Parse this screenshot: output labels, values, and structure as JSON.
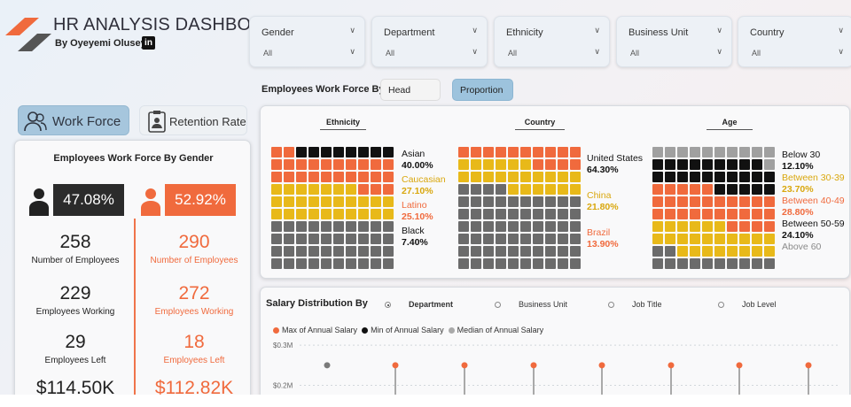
{
  "header": {
    "title": "HR ANALYSIS DASHBOARD",
    "byline": "By Oyeyemi Oluseye",
    "linkedin_icon": "in"
  },
  "filters": [
    {
      "label": "Gender",
      "value": "All"
    },
    {
      "label": "Department",
      "value": "All"
    },
    {
      "label": "Ethnicity",
      "value": "All"
    },
    {
      "label": "Business Unit",
      "value": "All"
    },
    {
      "label": "Country",
      "value": "All"
    }
  ],
  "nav": {
    "workforce": "Work Force",
    "retention": "Retention Rate",
    "active": "workforce"
  },
  "workforce_by": {
    "label": "Employees Work Force By",
    "head_count": "Head Count",
    "proportion": "Proportion",
    "active": "proportion"
  },
  "gender_card": {
    "title": "Employees Work Force By Gender",
    "male": {
      "pct": "47.08%",
      "employees": "258",
      "employees_label": "Number of Employees",
      "working": "229",
      "working_label": "Employees Working",
      "left": "29",
      "left_label": "Employees Left",
      "salary": "$114.50K"
    },
    "female": {
      "pct": "52.92%",
      "employees": "290",
      "employees_label": "Number of Employees",
      "working": "272",
      "working_label": "Employees Working",
      "left": "18",
      "left_label": "Employees Left",
      "salary": "$112.82K"
    }
  },
  "waffles": {
    "ethnicity": {
      "title": "Ethnicity",
      "items": [
        {
          "label": "Asian",
          "value": "40.00%",
          "pct": 40.0,
          "color": "#6b6b6b"
        },
        {
          "label": "Caucasian",
          "value": "27.10%",
          "pct": 27.1,
          "color": "#e8b919"
        },
        {
          "label": "Latino",
          "value": "25.10%",
          "pct": 25.1,
          "color": "#f06a3d"
        },
        {
          "label": "Black",
          "value": "7.40%",
          "pct": 7.4,
          "color": "#111111"
        }
      ]
    },
    "country": {
      "title": "Country",
      "items": [
        {
          "label": "United States",
          "value": "64.30%",
          "pct": 64.3,
          "color": "#6b6b6b"
        },
        {
          "label": "China",
          "value": "21.80%",
          "pct": 21.8,
          "color": "#e8b919"
        },
        {
          "label": "Brazil",
          "value": "13.90%",
          "pct": 13.9,
          "color": "#f06a3d"
        }
      ]
    },
    "age": {
      "title": "Age",
      "items": [
        {
          "label": "Below 30",
          "value": "12.10%",
          "pct": 12.1,
          "color": "#6b6b6b"
        },
        {
          "label": "Between 30-39",
          "value": "23.70%",
          "pct": 23.7,
          "color": "#e8b919"
        },
        {
          "label": "Between 40-49",
          "value": "28.80%",
          "pct": 28.8,
          "color": "#f06a3d"
        },
        {
          "label": "Between 50-59",
          "value": "24.10%",
          "pct": 24.1,
          "color": "#111111"
        },
        {
          "label": "Above 60",
          "value": "",
          "pct": 11.3,
          "color": "#a0a0a0"
        }
      ]
    }
  },
  "salary": {
    "title": "Salary Distribution By",
    "options": [
      "Department",
      "Business Unit",
      "Job Title",
      "Job Level"
    ],
    "selected": "Department",
    "legend": [
      {
        "label": "Max of Annual Salary",
        "color": "#f06a3d"
      },
      {
        "label": "Min of Annual Salary",
        "color": "#111111"
      },
      {
        "label": "Median of Annual Salary",
        "color": "#a9a9a9"
      }
    ]
  },
  "chart_data": {
    "type": "scatter",
    "title": "Salary Distribution By",
    "yticks": [
      "$0.3M",
      "$0.2M"
    ],
    "ylim": [
      0.1,
      0.32
    ],
    "series": [
      {
        "name": "Max of Annual Salary",
        "color": "#f06a3d",
        "values": [
          null,
          0.25,
          0.25,
          0.25,
          0.25,
          0.25,
          0.25,
          0.25
        ]
      },
      {
        "name": "Median of Annual Salary",
        "color": "#7a7a7a",
        "values": [
          0.25,
          null,
          null,
          null,
          null,
          null,
          null,
          null
        ]
      }
    ]
  }
}
